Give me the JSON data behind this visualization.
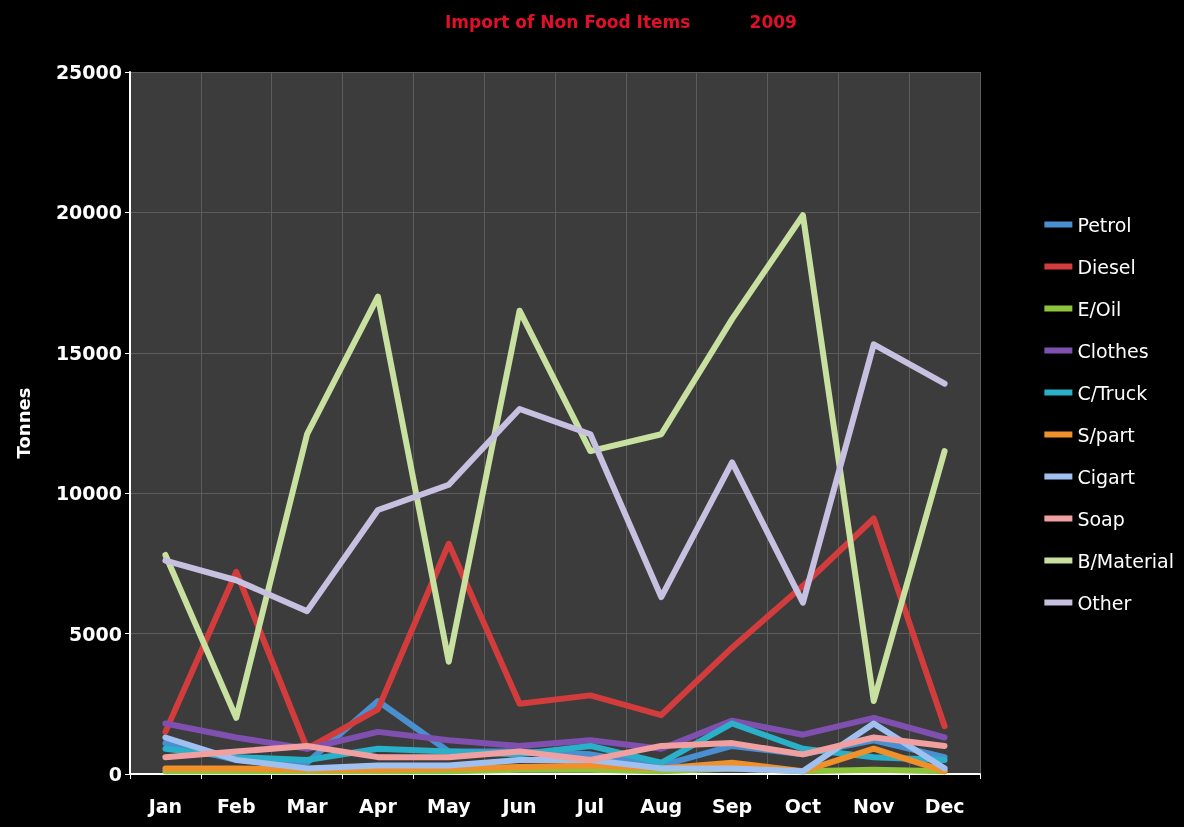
{
  "chart_data": {
    "type": "line",
    "title": "Import of Non Food Items          2009",
    "ylabel": "Tonnes",
    "categories": [
      "Jan",
      "Feb",
      "Mar",
      "Apr",
      "May",
      "Jun",
      "Jul",
      "Aug",
      "Sep",
      "Oct",
      "Nov",
      "Dec"
    ],
    "series": [
      {
        "name": "Petrol",
        "color": "#4a8fd0",
        "values": [
          1100,
          500,
          400,
          2600,
          800,
          800,
          700,
          300,
          1000,
          700,
          1200,
          600
        ]
      },
      {
        "name": "Diesel",
        "color": "#d23c3c",
        "values": [
          1500,
          7200,
          900,
          2300,
          8200,
          2500,
          2800,
          2100,
          4500,
          6700,
          9100,
          1700
        ]
      },
      {
        "name": "E/Oil",
        "color": "#8cc43c",
        "values": [
          100,
          100,
          100,
          100,
          100,
          150,
          150,
          100,
          200,
          100,
          150,
          100
        ]
      },
      {
        "name": "Clothes",
        "color": "#8050b0",
        "values": [
          1800,
          1300,
          900,
          1500,
          1200,
          1000,
          1200,
          900,
          1900,
          1400,
          2000,
          1300
        ]
      },
      {
        "name": "C/Truck",
        "color": "#2ab0c8",
        "values": [
          900,
          600,
          500,
          900,
          800,
          700,
          1000,
          400,
          1800,
          900,
          600,
          500
        ]
      },
      {
        "name": "S/part",
        "color": "#f0902a",
        "values": [
          200,
          200,
          150,
          150,
          200,
          250,
          300,
          200,
          400,
          100,
          900,
          100
        ]
      },
      {
        "name": "Cigart",
        "color": "#a0c0f0",
        "values": [
          1300,
          500,
          200,
          300,
          300,
          500,
          500,
          200,
          200,
          100,
          1800,
          200
        ]
      },
      {
        "name": "Soap",
        "color": "#f0a0a0",
        "values": [
          600,
          800,
          1000,
          600,
          600,
          800,
          500,
          1000,
          1100,
          700,
          1300,
          1000
        ]
      },
      {
        "name": "B/Material",
        "color": "#c8e0a0",
        "values": [
          7800,
          2000,
          12100,
          17000,
          4000,
          16500,
          11500,
          12100,
          16200,
          19900,
          2600,
          11500
        ]
      },
      {
        "name": "Other",
        "color": "#c8c0e0",
        "values": [
          7600,
          6900,
          5800,
          9400,
          10300,
          13000,
          12100,
          6300,
          11100,
          6100,
          15300,
          13900
        ]
      }
    ],
    "ylim": [
      0,
      25000
    ],
    "yticks": [
      0,
      5000,
      10000,
      15000,
      20000,
      25000
    ],
    "grid": true,
    "legend": "right",
    "marker": "none",
    "line_style": "solid"
  }
}
